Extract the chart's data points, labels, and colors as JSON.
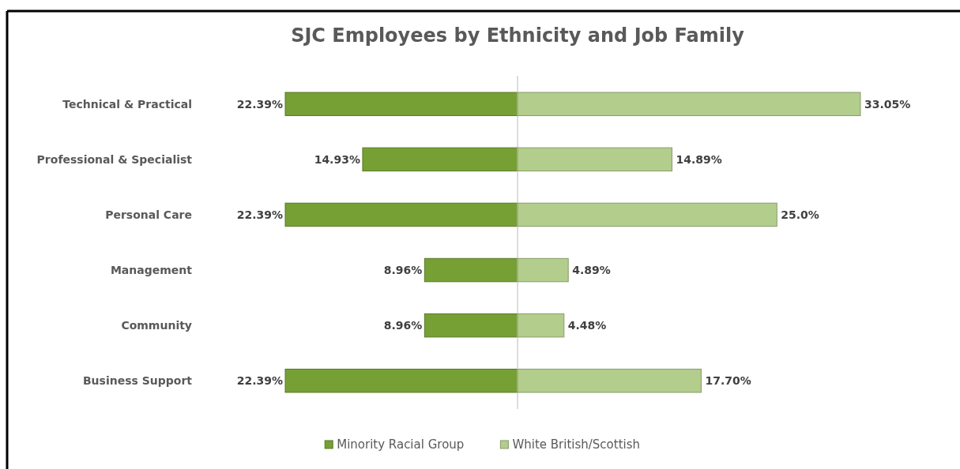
{
  "chart_data": [
    {
      "type": "bar",
      "orientation": "horizontal",
      "title": "SJC Employees by Ethnicity and Job Family",
      "categories": [
        "Technical & Practical",
        "Professional & Specialist",
        "Personal Care",
        "Management",
        "Community",
        "Business Support"
      ],
      "xlim": [
        22.39,
        0
      ],
      "series": [
        {
          "name": "Minority Racial Group",
          "color": "#76a034",
          "values": [
            22.39,
            14.93,
            22.39,
            8.96,
            8.96,
            22.39
          ],
          "value_labels": [
            "22.39%",
            "14.93%",
            "22.39%",
            "8.96%",
            "8.96%",
            "22.39%"
          ]
        }
      ],
      "tick_labels": "y",
      "grid": false,
      "legend": "bottom"
    },
    {
      "type": "bar",
      "orientation": "horizontal",
      "categories": [
        null,
        null,
        null,
        null,
        null,
        null
      ],
      "xlim": [
        0,
        33.05
      ],
      "series": [
        {
          "name": "White British/Scottish",
          "color": "#b3cd8c",
          "values": [
            33.05,
            14.89,
            25.0,
            4.89,
            4.48,
            17.7
          ],
          "value_labels": [
            "33.05%",
            "14.89%",
            "25.0%",
            "4.89%",
            "4.48%",
            "17.70%"
          ]
        }
      ],
      "grid": false,
      "legend": "bottom"
    }
  ]
}
